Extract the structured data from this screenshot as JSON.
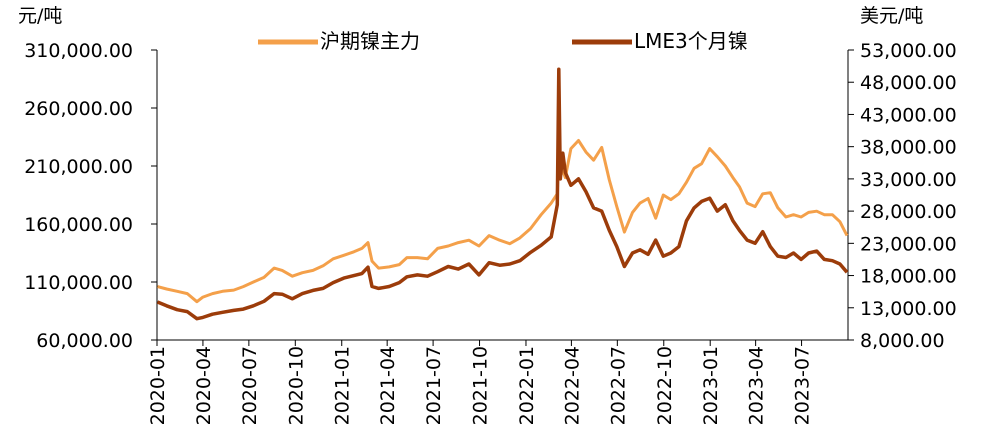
{
  "chart_data": {
    "type": "line",
    "left_unit": "元/吨",
    "right_unit": "美元/吨",
    "y_left": {
      "min": 60000,
      "max": 310000,
      "step": 50000,
      "tick_labels": [
        "60,000.00",
        "110,000.00",
        "160,000.00",
        "210,000.00",
        "260,000.00",
        "310,000.00"
      ]
    },
    "y_right": {
      "min": 8000,
      "max": 53000,
      "step": 5000,
      "tick_labels": [
        "8,000.00",
        "13,000.00",
        "18,000.00",
        "23,000.00",
        "28,000.00",
        "33,000.00",
        "38,000.00",
        "43,000.00",
        "48,000.00",
        "53,000.00"
      ]
    },
    "x_tick_labels": [
      "2020-01",
      "2020-04",
      "2020-07",
      "2020-10",
      "2021-01",
      "2021-04",
      "2021-07",
      "2021-10",
      "2022-01",
      "2022-04",
      "2022-07",
      "2022-10",
      "2023-01",
      "2023-04",
      "2023-07"
    ],
    "x_range": [
      "2020-01",
      "2023-10"
    ],
    "grid": false,
    "legend_position": "top",
    "series": [
      {
        "name": "沪期镍主力",
        "axis": "left",
        "color": "#F4A04A",
        "points": [
          [
            "2020-01-02",
            106000
          ],
          [
            "2020-01-20",
            104000
          ],
          [
            "2020-02-10",
            102000
          ],
          [
            "2020-03-01",
            100000
          ],
          [
            "2020-03-20",
            93000
          ],
          [
            "2020-04-01",
            97000
          ],
          [
            "2020-04-20",
            100000
          ],
          [
            "2020-05-10",
            102000
          ],
          [
            "2020-06-01",
            103000
          ],
          [
            "2020-06-20",
            106000
          ],
          [
            "2020-07-10",
            110000
          ],
          [
            "2020-07-31",
            114000
          ],
          [
            "2020-08-20",
            122000
          ],
          [
            "2020-09-05",
            120000
          ],
          [
            "2020-09-25",
            115000
          ],
          [
            "2020-10-15",
            118000
          ],
          [
            "2020-11-05",
            120000
          ],
          [
            "2020-11-25",
            124000
          ],
          [
            "2020-12-15",
            130000
          ],
          [
            "2021-01-05",
            133000
          ],
          [
            "2021-01-25",
            136000
          ],
          [
            "2021-02-10",
            139000
          ],
          [
            "2021-02-22",
            144000
          ],
          [
            "2021-03-02",
            128000
          ],
          [
            "2021-03-15",
            122000
          ],
          [
            "2021-04-05",
            123000
          ],
          [
            "2021-04-25",
            125000
          ],
          [
            "2021-05-10",
            131000
          ],
          [
            "2021-05-31",
            131000
          ],
          [
            "2021-06-20",
            130000
          ],
          [
            "2021-07-10",
            139000
          ],
          [
            "2021-07-31",
            141000
          ],
          [
            "2021-08-20",
            144000
          ],
          [
            "2021-09-10",
            146000
          ],
          [
            "2021-09-30",
            141000
          ],
          [
            "2021-10-20",
            150000
          ],
          [
            "2021-11-10",
            146000
          ],
          [
            "2021-11-30",
            143000
          ],
          [
            "2021-12-20",
            148000
          ],
          [
            "2022-01-10",
            156000
          ],
          [
            "2022-01-31",
            168000
          ],
          [
            "2022-02-20",
            178000
          ],
          [
            "2022-03-04",
            186000
          ],
          [
            "2022-03-07",
            225000
          ],
          [
            "2022-03-10",
            212000
          ],
          [
            "2022-03-20",
            200000
          ],
          [
            "2022-03-31",
            225000
          ],
          [
            "2022-04-15",
            232000
          ],
          [
            "2022-04-30",
            222000
          ],
          [
            "2022-05-15",
            215000
          ],
          [
            "2022-05-31",
            226000
          ],
          [
            "2022-06-15",
            198000
          ],
          [
            "2022-06-30",
            175000
          ],
          [
            "2022-07-15",
            153000
          ],
          [
            "2022-07-31",
            170000
          ],
          [
            "2022-08-15",
            178000
          ],
          [
            "2022-08-31",
            182000
          ],
          [
            "2022-09-15",
            165000
          ],
          [
            "2022-09-30",
            185000
          ],
          [
            "2022-10-15",
            181000
          ],
          [
            "2022-10-31",
            186000
          ],
          [
            "2022-11-15",
            196000
          ],
          [
            "2022-11-30",
            208000
          ],
          [
            "2022-12-15",
            212000
          ],
          [
            "2022-12-31",
            225000
          ],
          [
            "2023-01-15",
            218000
          ],
          [
            "2023-01-31",
            210000
          ],
          [
            "2023-02-15",
            200000
          ],
          [
            "2023-02-28",
            192000
          ],
          [
            "2023-03-15",
            178000
          ],
          [
            "2023-03-31",
            175000
          ],
          [
            "2023-04-15",
            186000
          ],
          [
            "2023-04-30",
            187000
          ],
          [
            "2023-05-15",
            174000
          ],
          [
            "2023-05-31",
            166000
          ],
          [
            "2023-06-15",
            168000
          ],
          [
            "2023-06-30",
            166000
          ],
          [
            "2023-07-15",
            170000
          ],
          [
            "2023-07-31",
            171000
          ],
          [
            "2023-08-15",
            168000
          ],
          [
            "2023-08-31",
            168000
          ],
          [
            "2023-09-15",
            162000
          ],
          [
            "2023-09-29",
            150000
          ]
        ]
      },
      {
        "name": "LME3个月镍",
        "axis": "right",
        "color": "#9C3C0A",
        "points": [
          [
            "2020-01-02",
            13900
          ],
          [
            "2020-01-20",
            13300
          ],
          [
            "2020-02-10",
            12700
          ],
          [
            "2020-03-01",
            12400
          ],
          [
            "2020-03-20",
            11300
          ],
          [
            "2020-04-01",
            11500
          ],
          [
            "2020-04-20",
            12000
          ],
          [
            "2020-05-10",
            12300
          ],
          [
            "2020-06-01",
            12600
          ],
          [
            "2020-06-20",
            12800
          ],
          [
            "2020-07-10",
            13300
          ],
          [
            "2020-07-31",
            14000
          ],
          [
            "2020-08-20",
            15200
          ],
          [
            "2020-09-05",
            15100
          ],
          [
            "2020-09-25",
            14400
          ],
          [
            "2020-10-15",
            15200
          ],
          [
            "2020-11-05",
            15700
          ],
          [
            "2020-11-25",
            16000
          ],
          [
            "2020-12-15",
            16900
          ],
          [
            "2021-01-05",
            17600
          ],
          [
            "2021-01-25",
            18000
          ],
          [
            "2021-02-10",
            18300
          ],
          [
            "2021-02-22",
            19300
          ],
          [
            "2021-03-02",
            16300
          ],
          [
            "2021-03-15",
            16000
          ],
          [
            "2021-04-05",
            16300
          ],
          [
            "2021-04-25",
            16900
          ],
          [
            "2021-05-10",
            17800
          ],
          [
            "2021-05-31",
            18100
          ],
          [
            "2021-06-20",
            17900
          ],
          [
            "2021-07-10",
            18600
          ],
          [
            "2021-07-31",
            19400
          ],
          [
            "2021-08-20",
            19000
          ],
          [
            "2021-09-10",
            19800
          ],
          [
            "2021-09-30",
            18100
          ],
          [
            "2021-10-20",
            20000
          ],
          [
            "2021-11-10",
            19600
          ],
          [
            "2021-11-30",
            19800
          ],
          [
            "2021-12-20",
            20300
          ],
          [
            "2022-01-10",
            21600
          ],
          [
            "2022-01-31",
            22700
          ],
          [
            "2022-02-20",
            24000
          ],
          [
            "2022-03-04",
            29000
          ],
          [
            "2022-03-07",
            50000
          ],
          [
            "2022-03-10",
            33000
          ],
          [
            "2022-03-15",
            37000
          ],
          [
            "2022-03-20",
            34000
          ],
          [
            "2022-03-31",
            32000
          ],
          [
            "2022-04-15",
            33000
          ],
          [
            "2022-04-30",
            31000
          ],
          [
            "2022-05-15",
            28500
          ],
          [
            "2022-05-31",
            28000
          ],
          [
            "2022-06-15",
            25000
          ],
          [
            "2022-06-30",
            22500
          ],
          [
            "2022-07-15",
            19400
          ],
          [
            "2022-07-31",
            21500
          ],
          [
            "2022-08-15",
            22000
          ],
          [
            "2022-08-31",
            21300
          ],
          [
            "2022-09-15",
            23500
          ],
          [
            "2022-09-30",
            21000
          ],
          [
            "2022-10-15",
            21500
          ],
          [
            "2022-10-31",
            22500
          ],
          [
            "2022-11-15",
            26500
          ],
          [
            "2022-11-30",
            28500
          ],
          [
            "2022-12-15",
            29500
          ],
          [
            "2022-12-31",
            30000
          ],
          [
            "2023-01-15",
            28000
          ],
          [
            "2023-01-31",
            29000
          ],
          [
            "2023-02-15",
            26500
          ],
          [
            "2023-02-28",
            25000
          ],
          [
            "2023-03-15",
            23500
          ],
          [
            "2023-03-31",
            23000
          ],
          [
            "2023-04-15",
            24800
          ],
          [
            "2023-04-30",
            22500
          ],
          [
            "2023-05-15",
            21000
          ],
          [
            "2023-05-31",
            20800
          ],
          [
            "2023-06-15",
            21500
          ],
          [
            "2023-06-30",
            20500
          ],
          [
            "2023-07-15",
            21500
          ],
          [
            "2023-07-31",
            21800
          ],
          [
            "2023-08-15",
            20500
          ],
          [
            "2023-08-31",
            20300
          ],
          [
            "2023-09-15",
            19800
          ],
          [
            "2023-09-29",
            18500
          ]
        ]
      }
    ]
  }
}
